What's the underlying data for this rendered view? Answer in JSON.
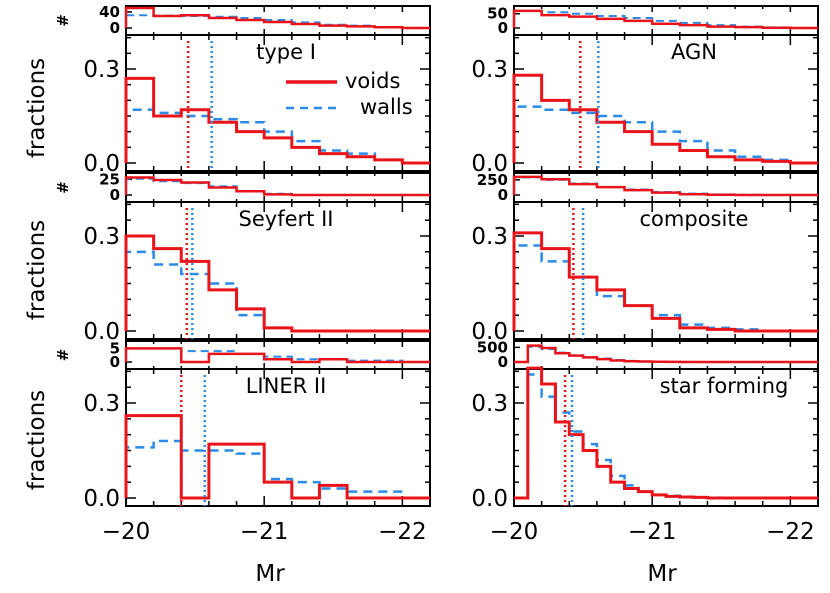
{
  "colors": {
    "voids": "#e8141a",
    "walls": "#2b8be6"
  },
  "legend": {
    "voids": "voids",
    "walls": "walls"
  },
  "labels": {
    "ylabel_fractions": "fractions",
    "ylabel_count": "#",
    "xlabel": "Mr",
    "xticks": [
      "−20",
      "−21",
      "−22"
    ],
    "fraction_ticks": [
      "0.0",
      "0.3"
    ]
  },
  "chart_data": [
    {
      "type": "histogram",
      "title": "type I",
      "x_range": [
        -20,
        -22.2
      ],
      "bins_edges": [
        -20.0,
        -20.2,
        -20.4,
        -20.6,
        -20.8,
        -21.0,
        -21.2,
        -21.4,
        -21.6,
        -21.8,
        -22.0,
        -22.2
      ],
      "series": [
        {
          "name": "voids",
          "fractions": [
            0.27,
            0.15,
            0.17,
            0.13,
            0.1,
            0.08,
            0.05,
            0.03,
            0.02,
            0.01,
            0.0
          ]
        },
        {
          "name": "walls",
          "fractions": [
            0.17,
            0.16,
            0.15,
            0.14,
            0.13,
            0.1,
            0.07,
            0.04,
            0.03,
            0.01,
            0.0
          ]
        }
      ],
      "median_lines": {
        "voids": -20.45,
        "walls": -20.62
      },
      "count_ylim": [
        0,
        50
      ],
      "count_ticks": [
        "40",
        "0"
      ],
      "count_series": {
        "voids": [
          50,
          30,
          32,
          25,
          20,
          15,
          10,
          6,
          4,
          2,
          0
        ],
        "walls": [
          32,
          31,
          30,
          28,
          25,
          20,
          14,
          8,
          6,
          2,
          0
        ]
      }
    },
    {
      "type": "histogram",
      "title": "AGN",
      "x_range": [
        -20,
        -22.2
      ],
      "bins_edges": [
        -20.0,
        -20.2,
        -20.4,
        -20.6,
        -20.8,
        -21.0,
        -21.2,
        -21.4,
        -21.6,
        -21.8,
        -22.0,
        -22.2
      ],
      "series": [
        {
          "name": "voids",
          "fractions": [
            0.28,
            0.2,
            0.17,
            0.13,
            0.1,
            0.06,
            0.04,
            0.02,
            0.01,
            0.005,
            0.0
          ]
        },
        {
          "name": "walls",
          "fractions": [
            0.18,
            0.17,
            0.16,
            0.15,
            0.13,
            0.1,
            0.07,
            0.04,
            0.02,
            0.01,
            0.0
          ]
        }
      ],
      "median_lines": {
        "voids": -20.48,
        "walls": -20.61
      },
      "count_ylim": [
        0,
        70
      ],
      "count_ticks": [
        "50",
        "0"
      ],
      "count_series": {
        "voids": [
          60,
          45,
          40,
          32,
          25,
          15,
          10,
          5,
          3,
          1,
          0
        ],
        "walls": [
          60,
          55,
          50,
          42,
          35,
          25,
          18,
          10,
          5,
          2,
          0
        ]
      }
    },
    {
      "type": "histogram",
      "title": "Seyfert II",
      "x_range": [
        -20,
        -22.2
      ],
      "bins_edges": [
        -20.0,
        -20.2,
        -20.4,
        -20.6,
        -20.8,
        -21.0,
        -21.2,
        -21.4,
        -21.6,
        -21.8,
        -22.0,
        -22.2
      ],
      "series": [
        {
          "name": "voids",
          "fractions": [
            0.3,
            0.26,
            0.22,
            0.13,
            0.07,
            0.01,
            0.0,
            0.0,
            0.0,
            0.0,
            0.0
          ]
        },
        {
          "name": "walls",
          "fractions": [
            0.25,
            0.21,
            0.18,
            0.15,
            0.05,
            0.01,
            0.0,
            0.0,
            0.0,
            0.0,
            0.0
          ]
        }
      ],
      "median_lines": {
        "voids": -20.44,
        "walls": -20.48
      },
      "count_ylim": [
        0,
        32
      ],
      "count_ticks": [
        "25",
        "0"
      ],
      "count_series": {
        "voids": [
          28,
          24,
          20,
          12,
          6,
          1,
          0,
          0,
          0,
          0,
          0
        ],
        "walls": [
          26,
          22,
          19,
          14,
          6,
          2,
          0,
          0,
          0,
          0,
          0
        ]
      }
    },
    {
      "type": "histogram",
      "title": "composite",
      "x_range": [
        -20,
        -22.2
      ],
      "bins_edges": [
        -20.0,
        -20.2,
        -20.4,
        -20.6,
        -20.8,
        -21.0,
        -21.2,
        -21.4,
        -21.6,
        -21.8,
        -22.0,
        -22.2
      ],
      "series": [
        {
          "name": "voids",
          "fractions": [
            0.31,
            0.26,
            0.17,
            0.13,
            0.08,
            0.04,
            0.01,
            0.005,
            0.0,
            0.0,
            0.0
          ]
        },
        {
          "name": "walls",
          "fractions": [
            0.27,
            0.22,
            0.17,
            0.11,
            0.08,
            0.05,
            0.02,
            0.01,
            0.005,
            0.0,
            0.0
          ]
        }
      ],
      "median_lines": {
        "voids": -20.43,
        "walls": -20.5
      },
      "count_ylim": [
        0,
        330
      ],
      "count_ticks": [
        "250",
        "0"
      ],
      "count_series": {
        "voids": [
          300,
          260,
          180,
          130,
          80,
          40,
          12,
          5,
          0,
          0,
          0
        ],
        "walls": [
          290,
          250,
          190,
          130,
          90,
          50,
          22,
          10,
          5,
          0,
          0
        ]
      }
    },
    {
      "type": "histogram",
      "title": "LINER II",
      "x_range": [
        -20,
        -22.2
      ],
      "bins_edges": [
        -20.0,
        -20.2,
        -20.4,
        -20.6,
        -20.8,
        -21.0,
        -21.2,
        -21.4,
        -21.6,
        -21.8,
        -22.0,
        -22.2
      ],
      "series": [
        {
          "name": "voids",
          "fractions": [
            0.26,
            0.26,
            0.0,
            0.17,
            0.17,
            0.05,
            0.0,
            0.04,
            0.0,
            0.0,
            0.0
          ]
        },
        {
          "name": "walls",
          "fractions": [
            0.16,
            0.18,
            0.15,
            0.15,
            0.14,
            0.06,
            0.05,
            0.03,
            0.02,
            0.02,
            0.0
          ]
        }
      ],
      "median_lines": {
        "voids": -20.4,
        "walls": -20.57
      },
      "count_ylim": [
        0,
        7
      ],
      "count_ticks": [
        "5",
        "0"
      ],
      "count_series": {
        "voids": [
          5,
          5,
          0,
          3,
          3,
          1,
          0,
          1,
          0,
          0,
          0
        ],
        "walls": [
          5,
          5,
          4,
          4,
          3,
          2,
          1,
          1,
          0.5,
          0.5,
          0
        ]
      }
    },
    {
      "type": "histogram",
      "title": "star forming",
      "x_range": [
        -20,
        -22.2
      ],
      "bins_edges": [
        -20.0,
        -20.1,
        -20.2,
        -20.3,
        -20.4,
        -20.5,
        -20.6,
        -20.7,
        -20.8,
        -20.9,
        -21.0,
        -21.1,
        -21.2,
        -21.3,
        -21.4,
        -21.5,
        -21.6,
        -21.7,
        -21.8,
        -22.2
      ],
      "series": [
        {
          "name": "voids",
          "fractions": [
            0.0,
            0.41,
            0.36,
            0.24,
            0.2,
            0.15,
            0.1,
            0.05,
            0.03,
            0.02,
            0.01,
            0.005,
            0.003,
            0.002,
            0.0,
            0.0,
            0.0,
            0.0,
            0.0
          ]
        },
        {
          "name": "walls",
          "fractions": [
            0.0,
            0.39,
            0.32,
            0.27,
            0.21,
            0.17,
            0.12,
            0.07,
            0.04,
            0.02,
            0.01,
            0.007,
            0.004,
            0.002,
            0.001,
            0.0,
            0.0,
            0.0,
            0.0
          ]
        }
      ],
      "median_lines": {
        "voids": -20.37,
        "walls": -20.42
      },
      "count_ylim": [
        0,
        650
      ],
      "count_ticks": [
        "500",
        "0"
      ],
      "count_series": {
        "voids": [
          0,
          560,
          480,
          300,
          220,
          160,
          100,
          50,
          25,
          15,
          8,
          5,
          2,
          1,
          0,
          0,
          0,
          0,
          0
        ],
        "walls": [
          0,
          520,
          440,
          320,
          230,
          170,
          120,
          70,
          40,
          22,
          12,
          8,
          5,
          2,
          1,
          0,
          0,
          0,
          0
        ]
      }
    }
  ]
}
